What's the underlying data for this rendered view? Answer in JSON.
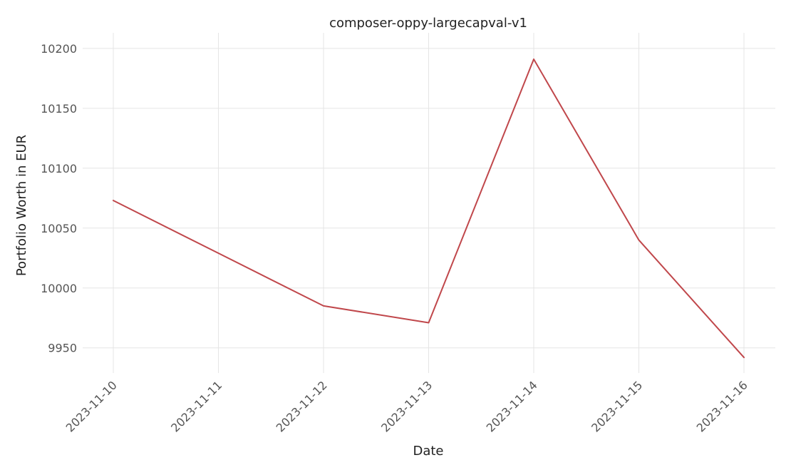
{
  "chart_data": {
    "type": "line",
    "title": "composer-oppy-largecapval-v1",
    "xlabel": "Date",
    "ylabel": "Portfolio Worth in EUR",
    "x": [
      "2023-11-10",
      "2023-11-11",
      "2023-11-12",
      "2023-11-13",
      "2023-11-14",
      "2023-11-15",
      "2023-11-16"
    ],
    "series": [
      {
        "values": [
          10073,
          10029,
          9985,
          9971,
          10191,
          10040,
          9942
        ],
        "color": "#c0474b"
      }
    ],
    "ylim": [
      9929,
      10213
    ],
    "yticks": [
      9950,
      10000,
      10050,
      10100,
      10150,
      10200
    ],
    "grid": true,
    "legend": "none"
  }
}
